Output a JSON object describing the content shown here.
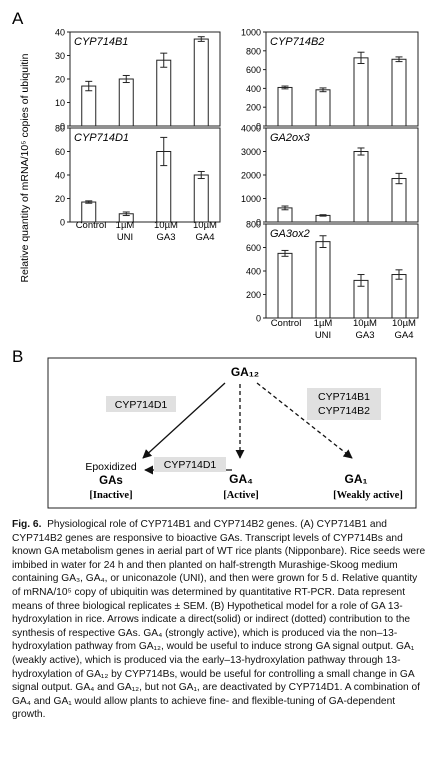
{
  "panel_a_label": "A",
  "panel_b_label": "B",
  "y_axis_label": "Relative quantity of mRNA/10⁵ copies of ubiquitin",
  "chart_data": [
    {
      "type": "bar",
      "title": "CYP714B1",
      "categories": [
        "Control",
        "1µM UNI",
        "10µM GA3",
        "10µM GA4"
      ],
      "values": [
        17,
        20,
        28,
        37
      ],
      "errors": [
        2,
        1.5,
        3,
        1
      ],
      "ylim": [
        0,
        40
      ],
      "yticks": [
        0,
        10,
        20,
        30,
        40
      ],
      "xlabel": "",
      "ylabel": ""
    },
    {
      "type": "bar",
      "title": "CYP714D1",
      "categories": [
        "Control",
        "1µM UNI",
        "10µM GA3",
        "10µM GA4"
      ],
      "values": [
        17,
        7,
        60,
        40
      ],
      "errors": [
        1,
        1.5,
        12,
        3
      ],
      "ylim": [
        0,
        80
      ],
      "yticks": [
        0,
        20,
        40,
        60,
        80
      ],
      "xlabel": "",
      "ylabel": ""
    },
    {
      "type": "bar",
      "title": "CYP714B2",
      "categories": [
        "Control",
        "1µM UNI",
        "10µM GA3",
        "10µM GA4"
      ],
      "values": [
        410,
        385,
        725,
        710
      ],
      "errors": [
        15,
        20,
        60,
        25
      ],
      "ylim": [
        0,
        1000
      ],
      "yticks": [
        0,
        200,
        400,
        600,
        800,
        1000
      ],
      "xlabel": "",
      "ylabel": ""
    },
    {
      "type": "bar",
      "title": "GA2ox3",
      "categories": [
        "Control",
        "1µM UNI",
        "10µM GA3",
        "10µM GA4"
      ],
      "values": [
        600,
        280,
        3000,
        1850
      ],
      "errors": [
        80,
        30,
        150,
        220
      ],
      "ylim": [
        0,
        4000
      ],
      "yticks": [
        0,
        1000,
        2000,
        3000,
        4000
      ],
      "xlabel": "",
      "ylabel": ""
    },
    {
      "type": "bar",
      "title": "GA3ox2",
      "categories": [
        "Control",
        "1µM UNI",
        "10µM GA3",
        "10µM GA4"
      ],
      "values": [
        550,
        650,
        320,
        370
      ],
      "errors": [
        25,
        50,
        50,
        40
      ],
      "ylim": [
        0,
        800
      ],
      "yticks": [
        0,
        200,
        400,
        600,
        800
      ],
      "xlabel": "",
      "ylabel": ""
    }
  ],
  "x_labels_left": [
    "Control",
    "1µM",
    "UNI",
    "10µM",
    "GA3",
    "10µM",
    "GA4"
  ],
  "x_labels_right": [
    "Control",
    "1µM",
    "UNI",
    "10µM",
    "GA3",
    "10µM",
    "GA4"
  ],
  "diagram": {
    "ga12": "GA₁₂",
    "cyp714d1_top": "CYP714D1",
    "cyp714b_line1": "CYP714B1",
    "cyp714b_line2": "CYP714B2",
    "cyp714d1_mid": "CYP714D1",
    "epox_line1": "Epoxidized",
    "epox_line2": "GAs",
    "inactive": "[Inactive]",
    "ga4": "GA₄",
    "active": "[Active]",
    "ga1": "GA₁",
    "weakly": "[Weakly active]"
  },
  "caption": {
    "fig": "Fig. 6.",
    "text": "Physiological role of CYP714B1 and CYP714B2 genes. (A) CYP714B1 and CYP714B2 genes are responsive to bioactive GAs. Transcript levels of CYP714Bs and known GA metabolism genes in aerial part of WT rice plants (Nipponbare). Rice seeds were imbibed in water for 24 h and then planted on half-strength Murashige-Skoog medium containing GA₃, GA₄, or uniconazole (UNI), and then were grown for 5 d. Relative quantity of mRNA/10⁵ copy of ubiquitin was determined by quantitative RT-PCR. Data represent means of three biological replicates ± SEM. (B) Hypothetical model for a role of GA 13-hydroxylation in rice. Arrows indicate a direct(solid) or indirect (dotted) contribution to the synthesis of respective GAs. GA₄ (strongly active), which is produced via the non–13-hydroxylation pathway from GA₁₂, would be useful to induce strong GA signal output. GA₁ (weakly active), which is produced via the early–13-hydroxylation pathway through 13-hydroxylation of GA₁₂ by CYP714Bs, would be useful for controlling a small change in GA signal output. GA₄ and GA₁₂, but not GA₁, are deactivated by CYP714D1. A combination of GA₄ and GA₁ would allow plants to achieve fine- and flexible-tuning of GA-dependent growth."
  }
}
